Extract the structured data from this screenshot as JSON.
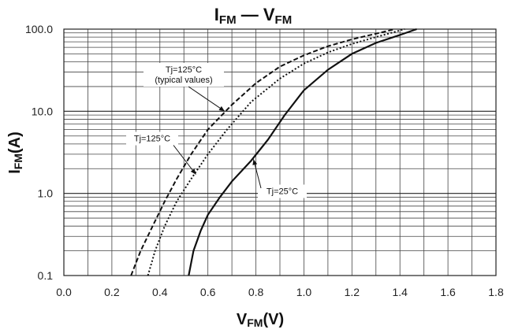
{
  "chart_data": {
    "type": "line",
    "title": {
      "main": "I",
      "sub": "FM",
      "dash": "—",
      "main2": "V",
      "sub2": "FM"
    },
    "xlabel": {
      "main": "V",
      "sub": "FM",
      "unit": "(V)"
    },
    "ylabel": {
      "main": "I",
      "sub": "FM",
      "unit": "(A)"
    },
    "xlim": [
      0.0,
      1.8
    ],
    "ylim": [
      0.1,
      100.0
    ],
    "yscale": "log",
    "grid": true,
    "xticks": [
      "0.0",
      "0.2",
      "0.4",
      "0.6",
      "0.8",
      "1.0",
      "1.2",
      "1.4",
      "1.6",
      "1.8"
    ],
    "yticks": [
      "0.1",
      "1.0",
      "10.0",
      "100.0"
    ],
    "series": [
      {
        "name": "Tj=125°C (typical values)",
        "style": "dashed",
        "points": [
          [
            0.28,
            0.1
          ],
          [
            0.32,
            0.2
          ],
          [
            0.37,
            0.4
          ],
          [
            0.42,
            0.8
          ],
          [
            0.47,
            1.5
          ],
          [
            0.53,
            3.0
          ],
          [
            0.6,
            6.0
          ],
          [
            0.7,
            12.0
          ],
          [
            0.8,
            22.0
          ],
          [
            0.9,
            35.0
          ],
          [
            1.0,
            48.0
          ],
          [
            1.1,
            62.0
          ],
          [
            1.2,
            75.0
          ],
          [
            1.3,
            88.0
          ],
          [
            1.38,
            100.0
          ]
        ]
      },
      {
        "name": "Tj=125°C",
        "style": "dotted",
        "points": [
          [
            0.35,
            0.1
          ],
          [
            0.38,
            0.2
          ],
          [
            0.42,
            0.4
          ],
          [
            0.47,
            0.8
          ],
          [
            0.53,
            1.5
          ],
          [
            0.6,
            3.0
          ],
          [
            0.68,
            6.0
          ],
          [
            0.78,
            13.0
          ],
          [
            0.9,
            25.0
          ],
          [
            1.0,
            38.0
          ],
          [
            1.1,
            52.0
          ],
          [
            1.2,
            66.0
          ],
          [
            1.3,
            80.0
          ],
          [
            1.42,
            100.0
          ]
        ]
      },
      {
        "name": "Tj=25°C",
        "style": "solid",
        "points": [
          [
            0.52,
            0.1
          ],
          [
            0.54,
            0.2
          ],
          [
            0.57,
            0.35
          ],
          [
            0.6,
            0.55
          ],
          [
            0.65,
            0.9
          ],
          [
            0.7,
            1.4
          ],
          [
            0.78,
            2.5
          ],
          [
            0.85,
            4.5
          ],
          [
            0.92,
            9.0
          ],
          [
            1.0,
            18.0
          ],
          [
            1.1,
            32.0
          ],
          [
            1.2,
            50.0
          ],
          [
            1.3,
            68.0
          ],
          [
            1.4,
            85.0
          ],
          [
            1.47,
            100.0
          ]
        ]
      }
    ],
    "annotations": [
      {
        "lines": [
          "Tj=125°C",
          "(typical values)"
        ],
        "points_to": [
          0.67,
          10.0
        ]
      },
      {
        "lines": [
          "Tj=125°C"
        ],
        "points_to": [
          0.55,
          1.7
        ]
      },
      {
        "lines": [
          "Tj=25°C"
        ],
        "points_to": [
          0.79,
          2.6
        ]
      }
    ]
  }
}
